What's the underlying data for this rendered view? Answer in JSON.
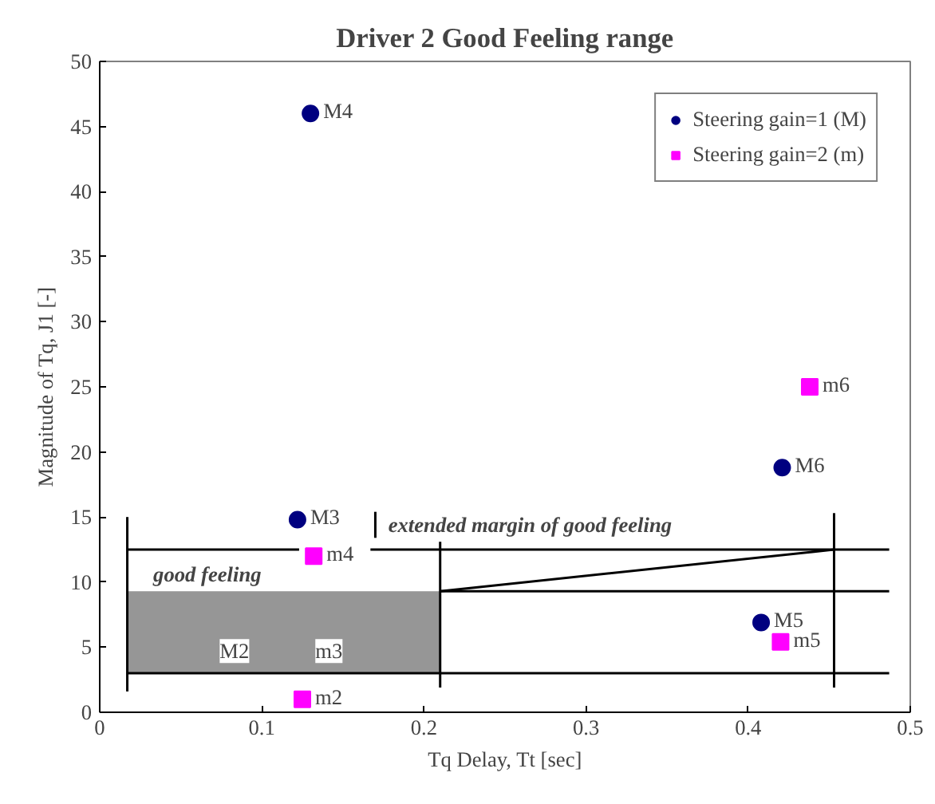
{
  "chart_data": {
    "type": "scatter",
    "title": "Driver 2 Good Feeling range",
    "xlabel": "Tq Delay, Tt [sec]",
    "ylabel": "Magnitude of Tq, J1 [-]",
    "xlim": [
      0,
      0.5
    ],
    "ylim": [
      0,
      50
    ],
    "xticks": [
      0,
      0.1,
      0.2,
      0.3,
      0.4,
      0.5
    ],
    "yticks": [
      0,
      5,
      10,
      15,
      20,
      25,
      30,
      35,
      40,
      45,
      50
    ],
    "grid": false,
    "legend": "top right",
    "series": [
      {
        "type": "bar",
        "color": "#969696",
        "x": [
          0.1135
        ],
        "base": [
          3
        ],
        "values": [
          6.3
        ]
      },
      {
        "type": "line",
        "color": "#000000",
        "x": [
          0.017,
          0.123,
          0.15,
          0.167,
          0.487
        ],
        "values": [
          12.5,
          12.5,
          null,
          12.5,
          12.5
        ]
      },
      {
        "type": "line",
        "color": "#000000",
        "x": [
          0.21,
          0.487
        ],
        "values": [
          9.3,
          9.3
        ]
      },
      {
        "type": "line",
        "color": "#000000",
        "x": [
          0.017,
          0.487
        ],
        "values": [
          3,
          3
        ]
      },
      {
        "type": "line",
        "color": "#000000",
        "x": [
          0.017,
          0.017
        ],
        "values": [
          1.6,
          15
        ]
      },
      {
        "type": "line",
        "color": "#000000",
        "x": [
          0.21,
          0.21
        ],
        "values": [
          1.9,
          13.1
        ]
      },
      {
        "type": "line",
        "color": "#000000",
        "x": [
          0.453,
          0.453
        ],
        "values": [
          1.9,
          15.3
        ]
      },
      {
        "type": "line",
        "color": "#000000",
        "x": [
          0.17,
          0.17
        ],
        "values": [
          13.4,
          15.4
        ]
      },
      {
        "type": "line",
        "color": "#000000",
        "x": [
          0.21,
          0.453
        ],
        "values": [
          9.3,
          12.5
        ]
      },
      {
        "name": "Steering gain=1 (M)",
        "color": "#000080",
        "marker": "circle",
        "x": [
          0.13,
          0.122,
          0.408,
          0.421
        ],
        "values": [
          46.0,
          14.8,
          6.9,
          18.8
        ],
        "value_labels": [
          "M4",
          "M3",
          "M5",
          "M6"
        ]
      },
      {
        "name": "Steering gain=2 (m)",
        "color": "#ff00ff",
        "marker": "square",
        "x": [
          0.132,
          0.125,
          0.42,
          0.438
        ],
        "values": [
          12.0,
          1.0,
          5.4,
          25.0
        ],
        "value_labels": [
          "m4",
          "m2",
          "m5",
          "m6"
        ]
      }
    ],
    "annotations": [
      "good feeling",
      "extended margin of good feeling",
      "M2",
      "m3"
    ]
  }
}
